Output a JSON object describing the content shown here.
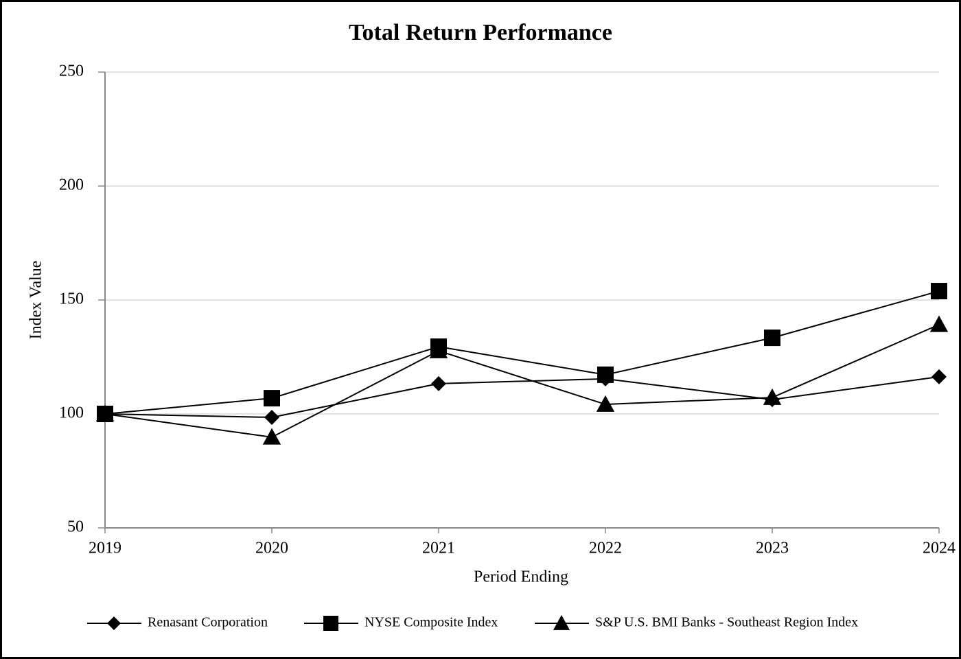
{
  "chart_data": {
    "type": "line",
    "title": "Total Return Performance",
    "x_label": "Period Ending",
    "y_label": "Index Value",
    "categories": [
      "2019",
      "2020",
      "2021",
      "2022",
      "2023",
      "2024"
    ],
    "series": [
      {
        "name": "Renasant Corporation",
        "color": "#000000",
        "marker": "diamond",
        "values": [
          100,
          98.5,
          113.3,
          115.4,
          106.3,
          116.3
        ]
      },
      {
        "name": "NYSE Composite Index",
        "color": "#000000",
        "marker": "square",
        "values": [
          100,
          106.9,
          129.5,
          117.2,
          133.4,
          153.9
        ]
      },
      {
        "name": "S&P U.S. BMI Banks - Southeast Region Index",
        "color": "#000000",
        "marker": "triangle",
        "values": [
          100,
          89.8,
          127.7,
          104.2,
          107.2,
          139.2
        ]
      }
    ],
    "ylim": [
      50,
      250
    ],
    "yticks": [
      50,
      100,
      150,
      200,
      250
    ],
    "grid": true,
    "legend": "bottom"
  }
}
